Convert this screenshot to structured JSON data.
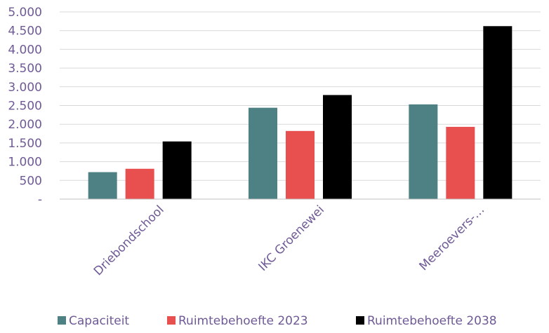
{
  "chart_data": {
    "type": "bar",
    "categories": [
      "Driebondschool",
      "IKC Groenewei",
      "Meeroevers-…"
    ],
    "series": [
      {
        "name": "Capaciteit",
        "color": "#4e8183",
        "values": [
          720,
          2440,
          2530
        ]
      },
      {
        "name": "Ruimtebehoefte 2023",
        "color": "#e84f4f",
        "values": [
          810,
          1820,
          1930
        ]
      },
      {
        "name": "Ruimtebehoefte 2038",
        "color": "#000000",
        "values": [
          1540,
          2780,
          4620
        ]
      }
    ],
    "yticks": [
      {
        "value": 0,
        "label": "-"
      },
      {
        "value": 500,
        "label": "500"
      },
      {
        "value": 1000,
        "label": "1.000"
      },
      {
        "value": 1500,
        "label": "1.500"
      },
      {
        "value": 2000,
        "label": "2.000"
      },
      {
        "value": 2500,
        "label": "2.500"
      },
      {
        "value": 3000,
        "label": "3.000"
      },
      {
        "value": 3500,
        "label": "3.500"
      },
      {
        "value": 4000,
        "label": "4.000"
      },
      {
        "value": 4500,
        "label": "4.500"
      },
      {
        "value": 5000,
        "label": "5.000"
      }
    ],
    "ylim": [
      0,
      5000
    ],
    "grid": true,
    "legend": "bottom"
  }
}
